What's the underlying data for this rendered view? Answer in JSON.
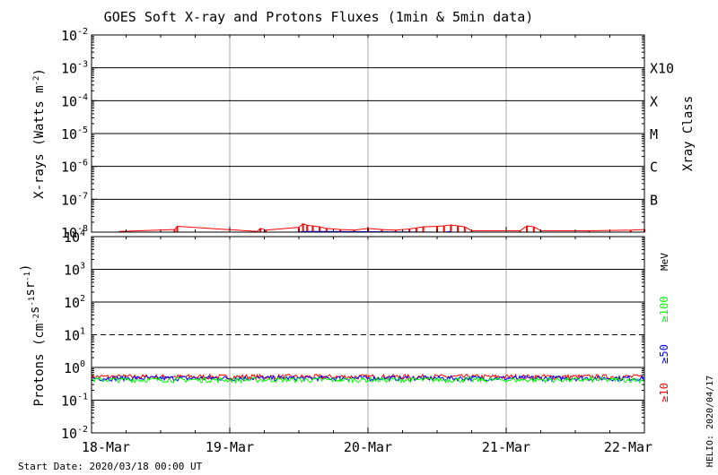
{
  "title": "GOES Soft X-ray and Protons Fluxes   (1min & 5min data)",
  "start_date": "Start Date: 2020/03/18 00:00 UT",
  "credit": "HELIO: 2020/04/17",
  "colors": {
    "xray_long": "#ff0000",
    "xray_short": "#0000ff",
    "proton_10": "#ff0000",
    "proton_50": "#0000ff",
    "proton_100": "#00ff00",
    "grid_major": "#000000",
    "grid_time": "#aaaaaa"
  },
  "chart_data": [
    {
      "type": "line",
      "panel": "xrays",
      "ylabel_main": "X-rays (Watts m",
      "ylabel_sup": "-2",
      "ylabel_end": ")",
      "yscale": "log",
      "ylim": [
        1e-08,
        0.01
      ],
      "y_ticks": [
        {
          "base": "10",
          "exp": "-8"
        },
        {
          "base": "10",
          "exp": "-7"
        },
        {
          "base": "10",
          "exp": "-6"
        },
        {
          "base": "10",
          "exp": "-5"
        },
        {
          "base": "10",
          "exp": "-4"
        },
        {
          "base": "10",
          "exp": "-3"
        },
        {
          "base": "10",
          "exp": "-2"
        }
      ],
      "right_axis_label": "Xray Class",
      "classes": [
        {
          "label": "B",
          "at_exp": -7
        },
        {
          "label": "C",
          "at_exp": -6
        },
        {
          "label": "M",
          "at_exp": -5
        },
        {
          "label": "X",
          "at_exp": -4
        },
        {
          "label": "X10",
          "at_exp": -3
        }
      ],
      "xlim": [
        "2020-03-18",
        "2020-03-22"
      ],
      "series": [
        {
          "color_key": "xray_long",
          "points": [
            [
              0.2,
              1.05e-08
            ],
            [
              0.6,
              1.2e-08
            ],
            [
              0.62,
              1.5e-08
            ],
            [
              1.2,
              1.05e-08
            ],
            [
              1.22,
              1.3e-08
            ],
            [
              1.26,
              1.15e-08
            ],
            [
              1.5,
              1.4e-08
            ],
            [
              1.53,
              1.8e-08
            ],
            [
              1.56,
              1.6e-08
            ],
            [
              1.6,
              1.55e-08
            ],
            [
              1.65,
              1.45e-08
            ],
            [
              1.7,
              1.3e-08
            ],
            [
              1.8,
              1.2e-08
            ],
            [
              1.9,
              1.15e-08
            ],
            [
              2.0,
              1.3e-08
            ],
            [
              2.1,
              1.2e-08
            ],
            [
              2.2,
              1.15e-08
            ],
            [
              2.3,
              1.25e-08
            ],
            [
              2.35,
              1.35e-08
            ],
            [
              2.4,
              1.45e-08
            ],
            [
              2.5,
              1.5e-08
            ],
            [
              2.55,
              1.55e-08
            ],
            [
              2.6,
              1.65e-08
            ],
            [
              2.65,
              1.55e-08
            ],
            [
              2.7,
              1.45e-08
            ],
            [
              2.75,
              1.1e-08
            ],
            [
              3.1,
              1.1e-08
            ],
            [
              3.15,
              1.55e-08
            ],
            [
              3.2,
              1.45e-08
            ],
            [
              3.25,
              1.1e-08
            ],
            [
              3.6,
              1.1e-08
            ],
            [
              3.9,
              1.15e-08
            ],
            [
              4.0,
              1.2e-08
            ]
          ]
        },
        {
          "color_key": "xray_short",
          "points": [
            [
              1.48,
              1e-08
            ],
            [
              1.55,
              1.05e-08
            ],
            [
              2.55,
              1e-08
            ],
            [
              2.6,
              1.05e-08
            ]
          ]
        }
      ]
    },
    {
      "type": "line",
      "panel": "protons",
      "ylabel_main": "Protons (cm",
      "ylabel_parts": [
        {
          "t": "Protons (cm",
          "sup": false
        },
        {
          "t": "-2",
          "sup": true
        },
        {
          "t": "s",
          "sup": false
        },
        {
          "t": "-1",
          "sup": true
        },
        {
          "t": "sr",
          "sup": false
        },
        {
          "t": "-1",
          "sup": true
        },
        {
          "t": ")",
          "sup": false
        }
      ],
      "yscale": "log",
      "ylim": [
        0.01,
        10000.0
      ],
      "y_ticks": [
        {
          "base": "10",
          "exp": "-2"
        },
        {
          "base": "10",
          "exp": "-1"
        },
        {
          "base": "10",
          "exp": "0"
        },
        {
          "base": "10",
          "exp": "1"
        },
        {
          "base": "10",
          "exp": "2"
        },
        {
          "base": "10",
          "exp": "3"
        },
        {
          "base": "10",
          "exp": "4"
        }
      ],
      "dashed_threshold": 10,
      "energy_unit": "MeV",
      "legend": [
        {
          "label": "≥10",
          "color_key": "proton_10"
        },
        {
          "label": "≥50",
          "color_key": "proton_50"
        },
        {
          "label": "≥100",
          "color_key": "proton_100"
        }
      ],
      "xlim": [
        "2020-03-18",
        "2020-03-22"
      ],
      "x_ticks": [
        "18-Mar",
        "19-Mar",
        "20-Mar",
        "21-Mar",
        "22-Mar"
      ],
      "series": [
        {
          "color_key": "proton_10",
          "level": 0.52
        },
        {
          "color_key": "proton_50",
          "level": 0.47
        },
        {
          "color_key": "proton_100",
          "level": 0.42
        }
      ]
    }
  ]
}
